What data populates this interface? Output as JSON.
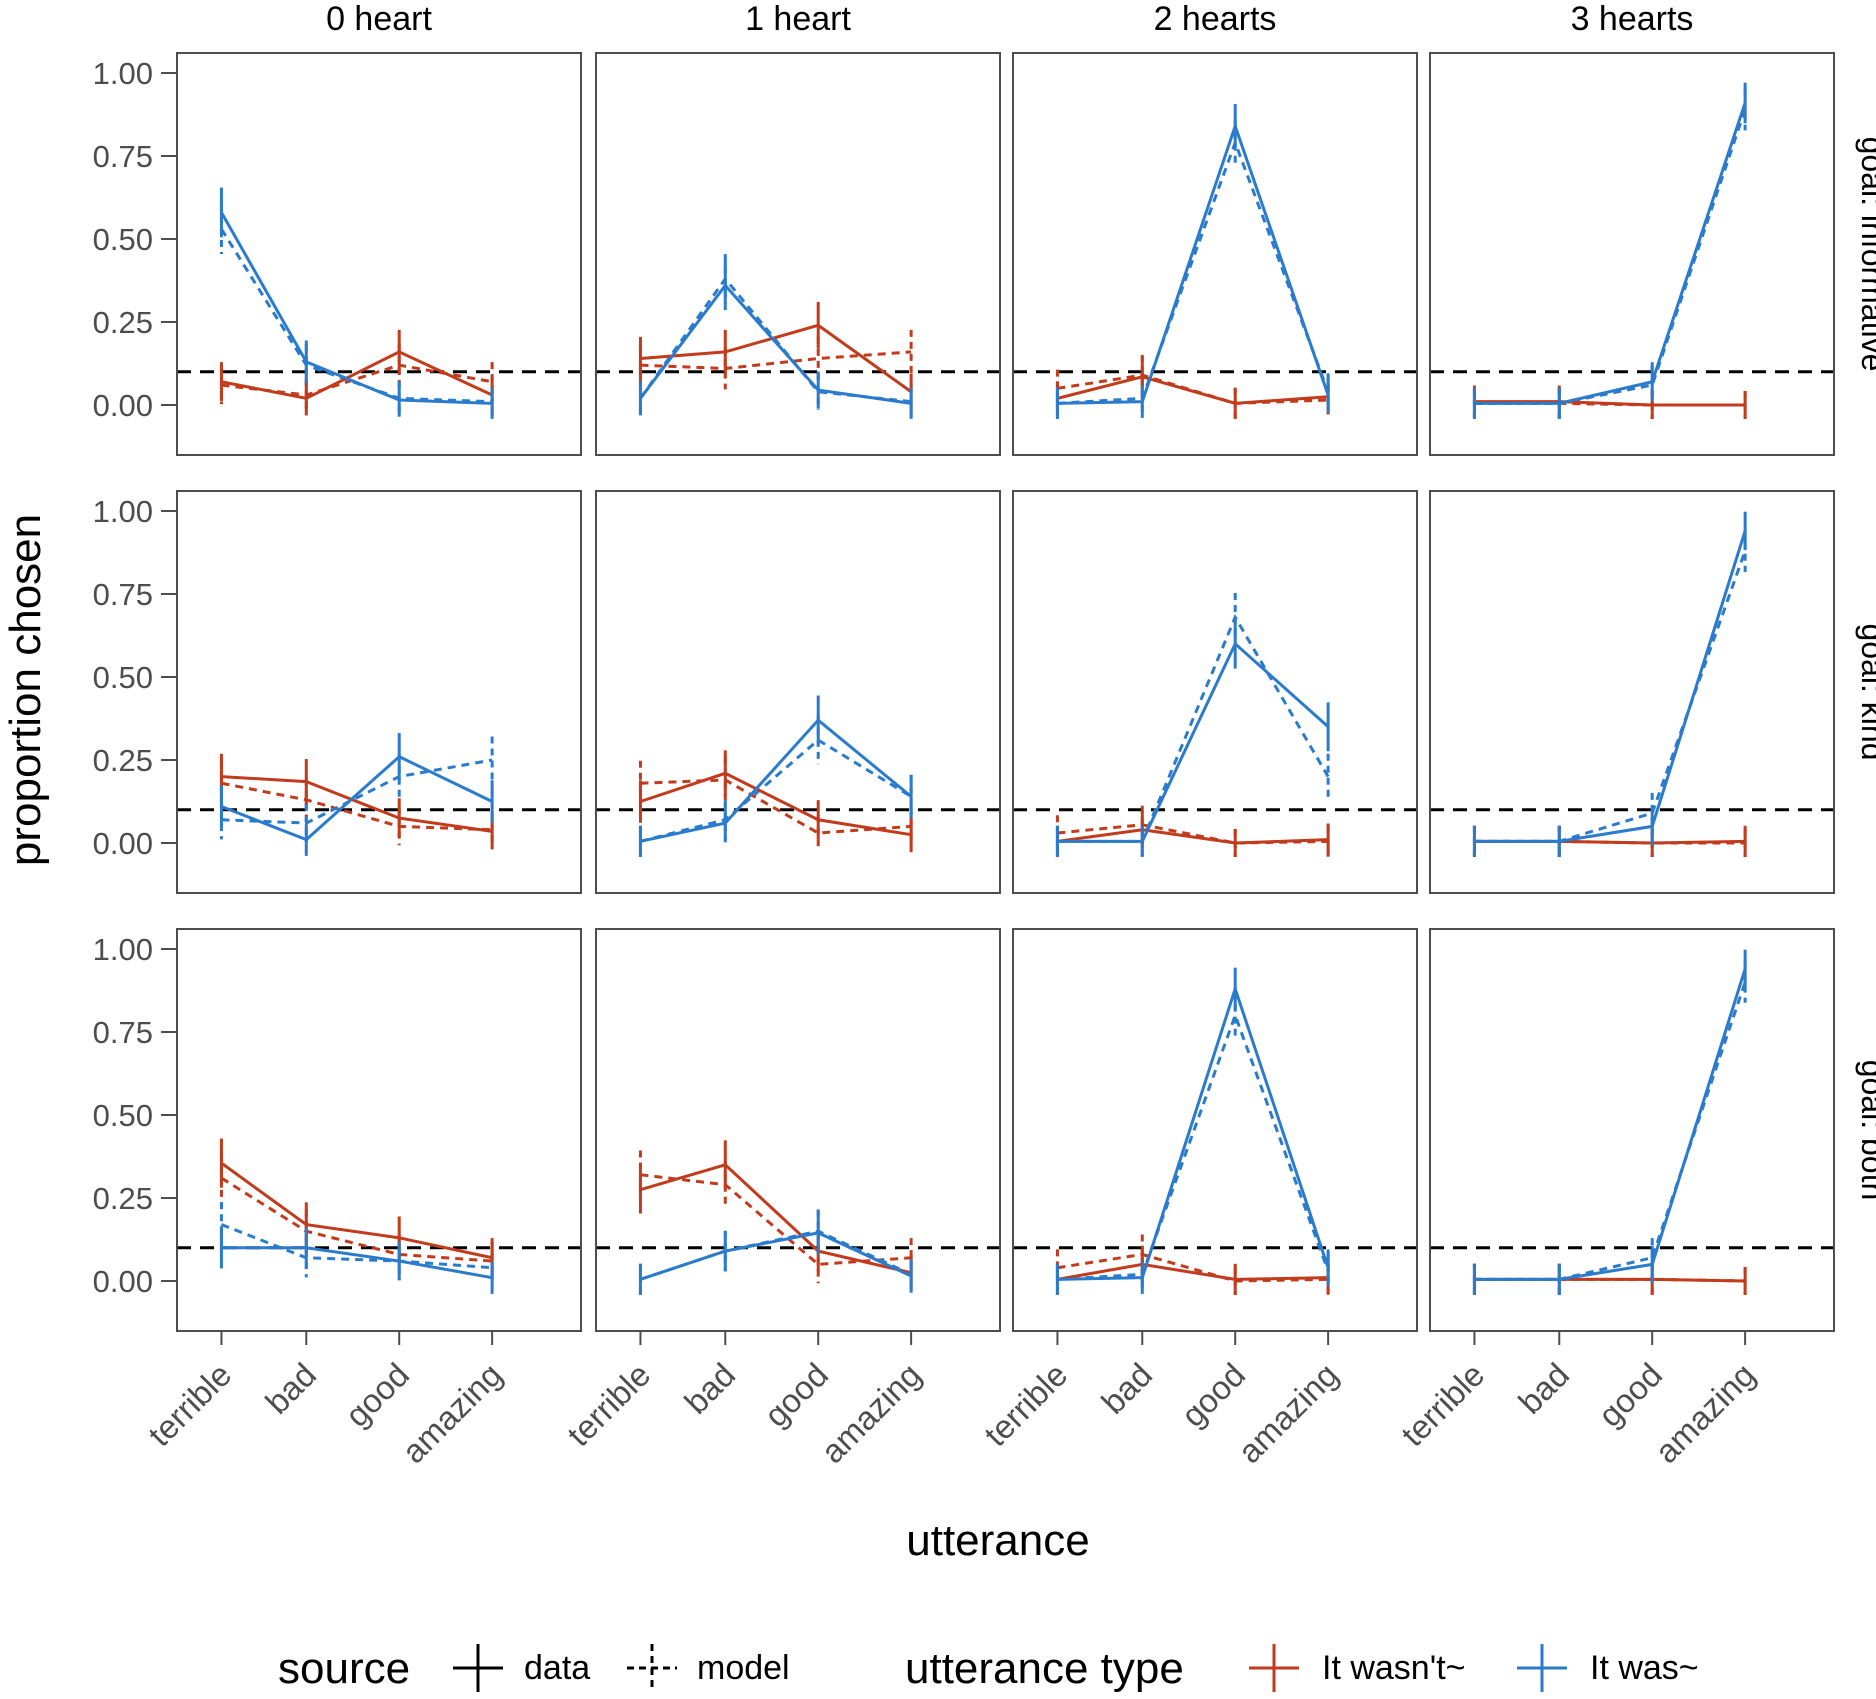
{
  "chart_data": {
    "type": "line",
    "xlabel": "utterance",
    "ylabel": "proportion chosen",
    "categories": [
      "terrible",
      "bad",
      "good",
      "amazing"
    ],
    "ylim": [
      0,
      1
    ],
    "yticks": [
      0,
      0.25,
      0.5,
      0.75,
      1
    ],
    "ytick_labels": [
      "0.00",
      "0.25",
      "0.50",
      "0.75",
      "1.00"
    ],
    "reference_line": 0.1,
    "columns": [
      "0 heart",
      "1 heart",
      "2 hearts",
      "3 hearts"
    ],
    "rows": [
      "goal: informative",
      "goal: kind",
      "goal: both"
    ],
    "legend": {
      "position": "bottom",
      "source_title": "source",
      "source_items": [
        "data",
        "model"
      ],
      "type_title": "utterance type",
      "type_items": [
        "It wasn't~",
        "It was~"
      ]
    },
    "colors": {
      "It wasn't~": "#c23b1c",
      "It was~": "#2b7bcd",
      "reference": "#000000",
      "panel_border": "#4d4d4d"
    },
    "panels": [
      {
        "row": "goal: informative",
        "column": "0 heart",
        "data_neg": [
          0.07,
          0.02,
          0.16,
          0.03
        ],
        "model_neg": [
          0.06,
          0.03,
          0.12,
          0.07
        ],
        "data_pos": [
          0.58,
          0.13,
          0.015,
          0.005
        ],
        "model_pos": [
          0.53,
          0.12,
          0.02,
          0.01
        ]
      },
      {
        "row": "goal: informative",
        "column": "1 heart",
        "data_neg": [
          0.14,
          0.16,
          0.24,
          0.04
        ],
        "model_neg": [
          0.12,
          0.11,
          0.14,
          0.16
        ],
        "data_pos": [
          0.02,
          0.36,
          0.045,
          0.005
        ],
        "model_pos": [
          0.02,
          0.38,
          0.04,
          0.01
        ]
      },
      {
        "row": "goal: informative",
        "column": "2 hearts",
        "data_neg": [
          0.02,
          0.085,
          0.005,
          0.025
        ],
        "model_neg": [
          0.05,
          0.09,
          0.005,
          0.015
        ],
        "data_pos": [
          0.005,
          0.01,
          0.84,
          0.03
        ],
        "model_pos": [
          0.005,
          0.02,
          0.79,
          0.04
        ]
      },
      {
        "row": "goal: informative",
        "column": "3 hearts",
        "data_neg": [
          0.01,
          0.01,
          0.0,
          0.0
        ],
        "model_neg": [
          0.005,
          0.005,
          0.0,
          0.0
        ],
        "data_pos": [
          0.005,
          0.005,
          0.07,
          0.91
        ],
        "model_pos": [
          0.005,
          0.005,
          0.06,
          0.89
        ]
      },
      {
        "row": "goal: kind",
        "column": "0 heart",
        "data_neg": [
          0.2,
          0.185,
          0.075,
          0.035
        ],
        "model_neg": [
          0.18,
          0.13,
          0.05,
          0.04
        ],
        "data_pos": [
          0.11,
          0.01,
          0.26,
          0.125
        ],
        "model_pos": [
          0.07,
          0.06,
          0.2,
          0.25
        ]
      },
      {
        "row": "goal: kind",
        "column": "1 heart",
        "data_neg": [
          0.125,
          0.21,
          0.07,
          0.025
        ],
        "model_neg": [
          0.18,
          0.19,
          0.03,
          0.05
        ],
        "data_pos": [
          0.005,
          0.06,
          0.37,
          0.14
        ],
        "model_pos": [
          0.005,
          0.07,
          0.31,
          0.14
        ]
      },
      {
        "row": "goal: kind",
        "column": "2 hearts",
        "data_neg": [
          0.005,
          0.04,
          0.0,
          0.01
        ],
        "model_neg": [
          0.03,
          0.055,
          0.0,
          0.005
        ],
        "data_pos": [
          0.005,
          0.005,
          0.6,
          0.35
        ],
        "model_pos": [
          0.005,
          0.005,
          0.68,
          0.2
        ]
      },
      {
        "row": "goal: kind",
        "column": "3 hearts",
        "data_neg": [
          0.005,
          0.005,
          0.0,
          0.005
        ],
        "model_neg": [
          0.005,
          0.005,
          0.0,
          0.0
        ],
        "data_pos": [
          0.005,
          0.005,
          0.05,
          0.94
        ],
        "model_pos": [
          0.005,
          0.005,
          0.09,
          0.88
        ]
      },
      {
        "row": "goal: both",
        "column": "0 heart",
        "data_neg": [
          0.355,
          0.17,
          0.13,
          0.07
        ],
        "model_neg": [
          0.31,
          0.15,
          0.08,
          0.06
        ],
        "data_pos": [
          0.1,
          0.1,
          0.06,
          0.01
        ],
        "model_pos": [
          0.17,
          0.07,
          0.06,
          0.04
        ]
      },
      {
        "row": "goal: both",
        "column": "1 heart",
        "data_neg": [
          0.275,
          0.35,
          0.09,
          0.025
        ],
        "model_neg": [
          0.32,
          0.29,
          0.05,
          0.07
        ],
        "data_pos": [
          0.005,
          0.09,
          0.145,
          0.015
        ],
        "model_pos": [
          0.005,
          0.09,
          0.15,
          0.02
        ]
      },
      {
        "row": "goal: both",
        "column": "2 hearts",
        "data_neg": [
          0.005,
          0.05,
          0.005,
          0.01
        ],
        "model_neg": [
          0.04,
          0.08,
          0.0,
          0.005
        ],
        "data_pos": [
          0.005,
          0.01,
          0.88,
          0.04
        ],
        "model_pos": [
          0.005,
          0.02,
          0.8,
          0.03
        ]
      },
      {
        "row": "goal: both",
        "column": "3 hearts",
        "data_neg": [
          0.005,
          0.005,
          0.005,
          0.0
        ],
        "model_neg": [
          0.005,
          0.005,
          0.005,
          0.0
        ],
        "data_pos": [
          0.005,
          0.005,
          0.05,
          0.94
        ],
        "model_pos": [
          0.005,
          0.005,
          0.07,
          0.9
        ]
      }
    ]
  }
}
